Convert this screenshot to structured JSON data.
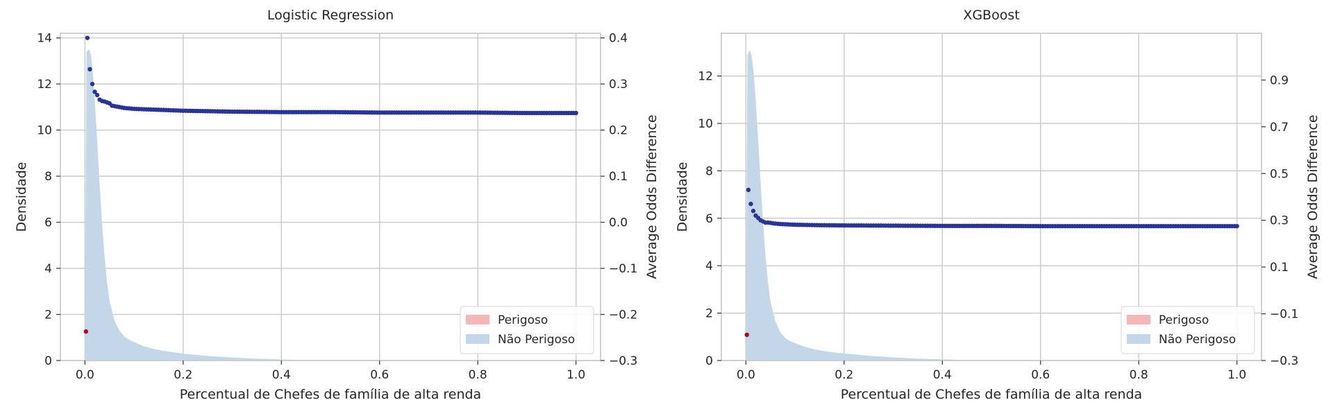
{
  "chart_data": [
    {
      "type": "area",
      "title": "Logistic Regression",
      "xlabel": "Percentual de Chefes de família de alta renda",
      "ylabel": "Densidade",
      "y2label": "Average Odds Difference",
      "xlim": [
        -0.05,
        1.05
      ],
      "ylim": [
        0,
        14.2
      ],
      "y2lim": [
        -0.3,
        0.41
      ],
      "xticks": [
        "0.0",
        "0.2",
        "0.4",
        "0.6",
        "0.8",
        "1.0"
      ],
      "xtick_values": [
        0,
        0.2,
        0.4,
        0.6,
        0.8,
        1.0
      ],
      "yticks": [
        "0",
        "2",
        "4",
        "6",
        "8",
        "10",
        "12",
        "14"
      ],
      "ytick_values": [
        0,
        2,
        4,
        6,
        8,
        10,
        12,
        14
      ],
      "y2ticks": [
        "0.4",
        "0.3",
        "0.2",
        "0.1",
        "0.0",
        "−0.1",
        "−0.2",
        "−0.3"
      ],
      "y2tick_values": [
        0.4,
        0.3,
        0.2,
        0.1,
        0.0,
        -0.1,
        -0.2,
        -0.3
      ],
      "grid": true,
      "legend": {
        "placement": "lower-right",
        "entries": [
          {
            "name": "Perigoso",
            "color": "#f4b6b6"
          },
          {
            "name": "Não Perigoso",
            "color": "#c3d7e8"
          }
        ]
      },
      "density_nao_perigoso": {
        "x": [
          0,
          0.003,
          0.008,
          0.012,
          0.016,
          0.02,
          0.025,
          0.03,
          0.035,
          0.04,
          0.045,
          0.05,
          0.06,
          0.07,
          0.08,
          0.09,
          0.1,
          0.12,
          0.14,
          0.16,
          0.18,
          0.2,
          0.25,
          0.3,
          0.35,
          0.4,
          0.45,
          0.5
        ],
        "y": [
          0,
          13.4,
          13.5,
          13.3,
          12.5,
          11.3,
          9.5,
          7.6,
          5.9,
          4.5,
          3.4,
          2.6,
          1.75,
          1.3,
          1.05,
          0.9,
          0.8,
          0.62,
          0.5,
          0.42,
          0.36,
          0.3,
          0.2,
          0.13,
          0.08,
          0.05,
          0.02,
          0
        ]
      },
      "aod_nao_perigoso": {
        "x": [
          0.005,
          0.01,
          0.015,
          0.02,
          0.025,
          0.03,
          0.035,
          0.04,
          0.045,
          0.05,
          0.055,
          0.06,
          0.065,
          0.07,
          0.08,
          0.09,
          0.1,
          0.15,
          0.2,
          0.3,
          0.4,
          0.5,
          0.6,
          0.7,
          0.8,
          0.9,
          1.0
        ],
        "y": [
          0.4,
          0.332,
          0.3,
          0.283,
          0.276,
          0.266,
          0.263,
          0.262,
          0.26,
          0.258,
          0.253,
          0.252,
          0.251,
          0.25,
          0.248,
          0.247,
          0.246,
          0.244,
          0.242,
          0.24,
          0.239,
          0.239,
          0.238,
          0.238,
          0.238,
          0.237,
          0.237
        ]
      },
      "aod_perigoso": {
        "x": [
          0.002
        ],
        "y": [
          -0.237
        ]
      }
    },
    {
      "type": "area",
      "title": "XGBoost",
      "xlabel": "Percentual de Chefes de família de alta renda",
      "ylabel": "Densidade",
      "y2label": "Average Odds Difference",
      "xlim": [
        -0.05,
        1.05
      ],
      "ylim": [
        0,
        13.8
      ],
      "y2lim": [
        -0.3,
        1.1
      ],
      "xticks": [
        "0.0",
        "0.2",
        "0.4",
        "0.6",
        "0.8",
        "1.0"
      ],
      "xtick_values": [
        0,
        0.2,
        0.4,
        0.6,
        0.8,
        1.0
      ],
      "yticks": [
        "0",
        "2",
        "4",
        "6",
        "8",
        "10",
        "12"
      ],
      "ytick_values": [
        0,
        2,
        4,
        6,
        8,
        10,
        12
      ],
      "y2ticks": [
        "0.9",
        "0.7",
        "0.5",
        "0.3",
        "0.1",
        "−0.1",
        "−0.3"
      ],
      "y2tick_values": [
        0.9,
        0.7,
        0.5,
        0.3,
        0.1,
        -0.1,
        -0.3
      ],
      "grid": true,
      "legend": {
        "placement": "lower-right",
        "entries": [
          {
            "name": "Perigoso",
            "color": "#f4b6b6"
          },
          {
            "name": "Não Perigoso",
            "color": "#c3d7e8"
          }
        ]
      },
      "density_nao_perigoso": {
        "x": [
          0,
          0.003,
          0.008,
          0.012,
          0.016,
          0.02,
          0.025,
          0.03,
          0.035,
          0.04,
          0.045,
          0.05,
          0.06,
          0.07,
          0.08,
          0.09,
          0.1,
          0.12,
          0.14,
          0.16,
          0.18,
          0.2,
          0.25,
          0.3,
          0.35,
          0.4,
          0.45,
          0.5
        ],
        "y": [
          0,
          12.9,
          13.1,
          12.8,
          12.1,
          11.0,
          9.3,
          7.5,
          5.8,
          4.4,
          3.3,
          2.5,
          1.65,
          1.2,
          0.95,
          0.82,
          0.74,
          0.58,
          0.47,
          0.4,
          0.34,
          0.3,
          0.2,
          0.13,
          0.08,
          0.05,
          0.02,
          0
        ]
      },
      "aod_nao_perigoso": {
        "x": [
          0.005,
          0.01,
          0.015,
          0.02,
          0.025,
          0.03,
          0.035,
          0.04,
          0.045,
          0.05,
          0.055,
          0.06,
          0.07,
          0.08,
          0.09,
          0.1,
          0.15,
          0.2,
          0.3,
          0.4,
          0.5,
          0.6,
          0.7,
          0.8,
          0.9,
          1.0
        ],
        "y": [
          0.43,
          0.37,
          0.34,
          0.32,
          0.31,
          0.3,
          0.295,
          0.29,
          0.29,
          0.289,
          0.287,
          0.286,
          0.284,
          0.283,
          0.282,
          0.281,
          0.279,
          0.278,
          0.277,
          0.276,
          0.276,
          0.275,
          0.275,
          0.275,
          0.275,
          0.275
        ]
      },
      "aod_perigoso": {
        "x": [
          0.002
        ],
        "y": [
          -0.19
        ]
      }
    }
  ],
  "colors": {
    "nao_perigoso_fill": "#c3d7e8",
    "perigoso_fill": "#f4b6b6",
    "aod_nao_perigoso": "#2b3591",
    "aod_perigoso": "#a50f15",
    "grid": "#cccccc",
    "frame": "#cccccc"
  }
}
